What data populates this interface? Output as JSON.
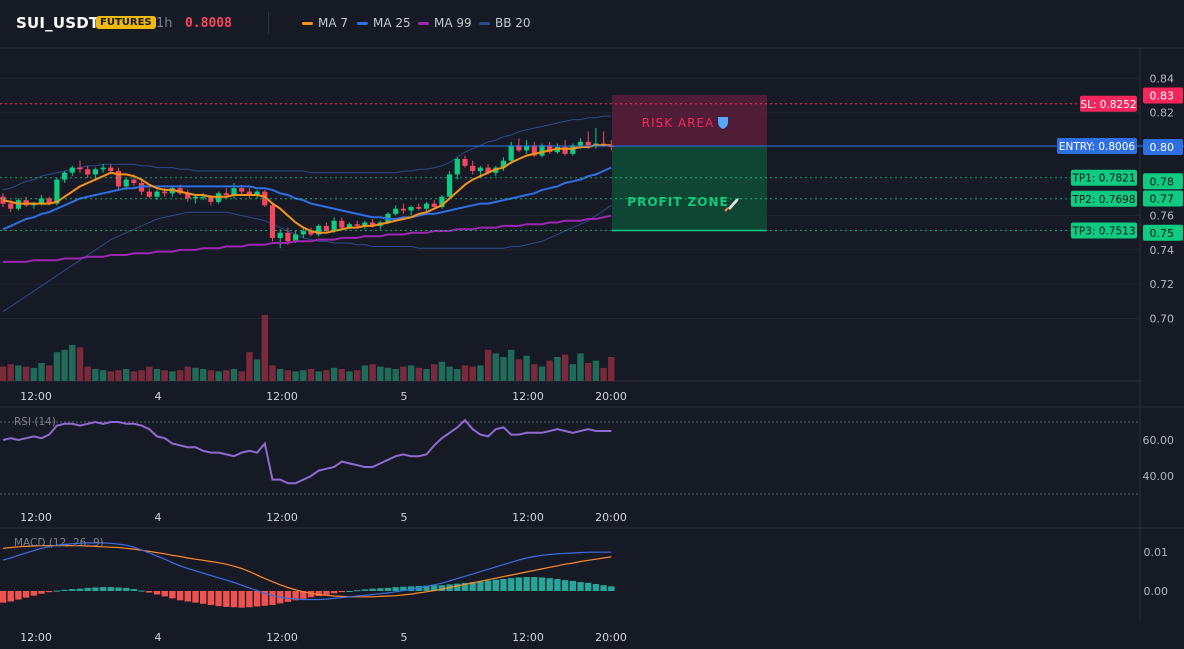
{
  "header": {
    "symbol": "SUI_USDT",
    "badge": "FUTURES",
    "timeframe": "1h",
    "last_price": "0.8008",
    "indicators": [
      {
        "label": "MA 7",
        "color": "#f7931a"
      },
      {
        "label": "MA 25",
        "color": "#2f6fe4"
      },
      {
        "label": "MA 99",
        "color": "#9c27b0"
      },
      {
        "label": "BB 20",
        "color": "#2b4a8a"
      }
    ]
  },
  "colors": {
    "up": "#0ecb81",
    "down": "#f6465d",
    "ma7": "#f7931a",
    "ma25": "#2f6fe4",
    "ma99": "#9c27b0",
    "bb": "#2b4a8a",
    "rsi": "#8e6ccf",
    "macd": "#3b6de0",
    "signal": "#ff8a2a",
    "hist_up": "#26a69a",
    "hist_down": "#ef5350",
    "sl": "#f6265d",
    "entry": "#2f6fe4",
    "tp": "#0ecb81"
  },
  "price_axis": {
    "labels": [
      "0.84",
      "0.83",
      "0.82",
      "0.80",
      "0.78",
      "0.77",
      "0.76",
      "0.75",
      "0.74",
      "0.72",
      "0.70"
    ]
  },
  "time_axis": {
    "labels": [
      "12:00",
      "4",
      "12:00",
      "5",
      "12:00",
      "20:00"
    ]
  },
  "trade": {
    "sl_label": "SL: 0.8252",
    "sl": 0.8252,
    "entry_label": "ENTRY: 0.8006",
    "entry": 0.8006,
    "tps": [
      {
        "label": "TP1: 0.7821",
        "value": 0.7821
      },
      {
        "label": "TP2: 0.7698",
        "value": 0.7698
      },
      {
        "label": "TP3: 0.7513",
        "value": 0.7513
      }
    ],
    "risk_label": "RISK AREA",
    "profit_label": "PROFIT ZONE"
  },
  "rsi": {
    "label": "RSI (14)",
    "axis_labels": [
      "60.00",
      "40.00"
    ],
    "upper": 70,
    "lower": 30
  },
  "macd": {
    "label": "MACD (12, 26, 9)",
    "axis_labels": [
      "0.01",
      "0.00"
    ]
  },
  "chart_data": {
    "type": "candlestick",
    "candles": [
      [
        0.771,
        0.773,
        0.765,
        0.767
      ],
      [
        0.767,
        0.769,
        0.762,
        0.764
      ],
      [
        0.764,
        0.77,
        0.763,
        0.769
      ],
      [
        0.769,
        0.771,
        0.765,
        0.766
      ],
      [
        0.766,
        0.768,
        0.764,
        0.767
      ],
      [
        0.767,
        0.772,
        0.766,
        0.77
      ],
      [
        0.77,
        0.771,
        0.766,
        0.767
      ],
      [
        0.767,
        0.782,
        0.766,
        0.781
      ],
      [
        0.781,
        0.786,
        0.779,
        0.785
      ],
      [
        0.785,
        0.789,
        0.783,
        0.788
      ],
      [
        0.788,
        0.792,
        0.785,
        0.787
      ],
      [
        0.787,
        0.789,
        0.782,
        0.784
      ],
      [
        0.784,
        0.788,
        0.781,
        0.787
      ],
      [
        0.787,
        0.79,
        0.785,
        0.788
      ],
      [
        0.788,
        0.79,
        0.784,
        0.786
      ],
      [
        0.786,
        0.788,
        0.775,
        0.777
      ],
      [
        0.777,
        0.782,
        0.775,
        0.781
      ],
      [
        0.781,
        0.784,
        0.777,
        0.779
      ],
      [
        0.779,
        0.781,
        0.772,
        0.774
      ],
      [
        0.774,
        0.776,
        0.77,
        0.771
      ],
      [
        0.771,
        0.775,
        0.769,
        0.774
      ],
      [
        0.774,
        0.776,
        0.771,
        0.773
      ],
      [
        0.773,
        0.777,
        0.771,
        0.776
      ],
      [
        0.776,
        0.778,
        0.772,
        0.773
      ],
      [
        0.773,
        0.775,
        0.768,
        0.77
      ],
      [
        0.77,
        0.772,
        0.767,
        0.771
      ],
      [
        0.771,
        0.773,
        0.769,
        0.771
      ],
      [
        0.771,
        0.772,
        0.766,
        0.768
      ],
      [
        0.768,
        0.774,
        0.767,
        0.773
      ],
      [
        0.773,
        0.776,
        0.77,
        0.772
      ],
      [
        0.772,
        0.779,
        0.77,
        0.776
      ],
      [
        0.776,
        0.778,
        0.772,
        0.774
      ],
      [
        0.774,
        0.776,
        0.77,
        0.772
      ],
      [
        0.772,
        0.775,
        0.77,
        0.774
      ],
      [
        0.774,
        0.775,
        0.765,
        0.766
      ],
      [
        0.766,
        0.768,
        0.745,
        0.747
      ],
      [
        0.747,
        0.752,
        0.741,
        0.75
      ],
      [
        0.75,
        0.753,
        0.743,
        0.745
      ],
      [
        0.745,
        0.751,
        0.744,
        0.749
      ],
      [
        0.749,
        0.753,
        0.747,
        0.751
      ],
      [
        0.751,
        0.753,
        0.748,
        0.749
      ],
      [
        0.749,
        0.755,
        0.748,
        0.754
      ],
      [
        0.754,
        0.756,
        0.75,
        0.751
      ],
      [
        0.751,
        0.759,
        0.75,
        0.757
      ],
      [
        0.757,
        0.759,
        0.752,
        0.753
      ],
      [
        0.753,
        0.756,
        0.752,
        0.755
      ],
      [
        0.755,
        0.757,
        0.753,
        0.754
      ],
      [
        0.754,
        0.757,
        0.752,
        0.756
      ],
      [
        0.756,
        0.758,
        0.753,
        0.754
      ],
      [
        0.754,
        0.757,
        0.752,
        0.756
      ],
      [
        0.756,
        0.762,
        0.755,
        0.761
      ],
      [
        0.761,
        0.766,
        0.76,
        0.764
      ],
      [
        0.764,
        0.767,
        0.761,
        0.763
      ],
      [
        0.763,
        0.766,
        0.76,
        0.765
      ],
      [
        0.765,
        0.767,
        0.763,
        0.764
      ],
      [
        0.764,
        0.768,
        0.762,
        0.767
      ],
      [
        0.767,
        0.769,
        0.764,
        0.765
      ],
      [
        0.765,
        0.772,
        0.764,
        0.771
      ],
      [
        0.771,
        0.786,
        0.77,
        0.784
      ],
      [
        0.784,
        0.794,
        0.781,
        0.793
      ],
      [
        0.793,
        0.795,
        0.788,
        0.789
      ],
      [
        0.789,
        0.792,
        0.784,
        0.786
      ],
      [
        0.786,
        0.789,
        0.782,
        0.788
      ],
      [
        0.788,
        0.79,
        0.784,
        0.785
      ],
      [
        0.785,
        0.789,
        0.783,
        0.788
      ],
      [
        0.788,
        0.794,
        0.786,
        0.792
      ],
      [
        0.792,
        0.803,
        0.79,
        0.801
      ],
      [
        0.801,
        0.805,
        0.797,
        0.798
      ],
      [
        0.798,
        0.804,
        0.796,
        0.801
      ],
      [
        0.801,
        0.803,
        0.794,
        0.795
      ],
      [
        0.795,
        0.802,
        0.794,
        0.801
      ],
      [
        0.801,
        0.803,
        0.796,
        0.797
      ],
      [
        0.797,
        0.802,
        0.796,
        0.8
      ],
      [
        0.8,
        0.804,
        0.795,
        0.796
      ],
      [
        0.796,
        0.802,
        0.795,
        0.801
      ],
      [
        0.801,
        0.805,
        0.799,
        0.803
      ],
      [
        0.803,
        0.809,
        0.799,
        0.801
      ],
      [
        0.801,
        0.811,
        0.799,
        0.802
      ],
      [
        0.802,
        0.809,
        0.8,
        0.801
      ],
      [
        0.801,
        0.804,
        0.798,
        0.8
      ]
    ],
    "ma7": [
      0.769,
      0.768,
      0.767,
      0.767,
      0.767,
      0.767,
      0.767,
      0.768,
      0.771,
      0.774,
      0.777,
      0.779,
      0.781,
      0.783,
      0.785,
      0.784,
      0.784,
      0.783,
      0.781,
      0.778,
      0.776,
      0.775,
      0.775,
      0.774,
      0.773,
      0.772,
      0.772,
      0.771,
      0.771,
      0.771,
      0.772,
      0.772,
      0.772,
      0.772,
      0.771,
      0.767,
      0.764,
      0.76,
      0.756,
      0.753,
      0.751,
      0.75,
      0.75,
      0.751,
      0.752,
      0.753,
      0.753,
      0.754,
      0.754,
      0.755,
      0.756,
      0.757,
      0.758,
      0.759,
      0.761,
      0.762,
      0.764,
      0.766,
      0.77,
      0.774,
      0.778,
      0.781,
      0.783,
      0.785,
      0.787,
      0.788,
      0.791,
      0.793,
      0.795,
      0.796,
      0.797,
      0.798,
      0.799,
      0.799,
      0.799,
      0.8,
      0.8,
      0.801,
      0.801,
      0.801
    ],
    "ma25": [
      0.752,
      0.754,
      0.756,
      0.758,
      0.759,
      0.761,
      0.762,
      0.764,
      0.766,
      0.768,
      0.77,
      0.771,
      0.772,
      0.773,
      0.774,
      0.775,
      0.776,
      0.776,
      0.777,
      0.777,
      0.777,
      0.777,
      0.777,
      0.777,
      0.777,
      0.777,
      0.777,
      0.777,
      0.777,
      0.777,
      0.777,
      0.777,
      0.777,
      0.776,
      0.776,
      0.775,
      0.773,
      0.772,
      0.77,
      0.769,
      0.767,
      0.766,
      0.765,
      0.764,
      0.763,
      0.762,
      0.761,
      0.76,
      0.759,
      0.759,
      0.758,
      0.758,
      0.759,
      0.759,
      0.76,
      0.761,
      0.761,
      0.762,
      0.763,
      0.764,
      0.765,
      0.766,
      0.767,
      0.767,
      0.768,
      0.769,
      0.77,
      0.771,
      0.772,
      0.773,
      0.775,
      0.776,
      0.777,
      0.779,
      0.78,
      0.781,
      0.783,
      0.784,
      0.786,
      0.788
    ],
    "ma99": [
      0.733,
      0.733,
      0.733,
      0.733,
      0.734,
      0.734,
      0.734,
      0.734,
      0.735,
      0.735,
      0.735,
      0.736,
      0.736,
      0.736,
      0.737,
      0.737,
      0.737,
      0.738,
      0.738,
      0.738,
      0.739,
      0.739,
      0.739,
      0.74,
      0.74,
      0.74,
      0.741,
      0.741,
      0.741,
      0.742,
      0.742,
      0.742,
      0.743,
      0.743,
      0.743,
      0.744,
      0.744,
      0.744,
      0.745,
      0.745,
      0.745,
      0.746,
      0.746,
      0.746,
      0.747,
      0.747,
      0.747,
      0.748,
      0.748,
      0.748,
      0.749,
      0.749,
      0.749,
      0.75,
      0.75,
      0.75,
      0.751,
      0.751,
      0.751,
      0.752,
      0.752,
      0.752,
      0.753,
      0.753,
      0.753,
      0.754,
      0.754,
      0.754,
      0.755,
      0.755,
      0.755,
      0.756,
      0.756,
      0.757,
      0.757,
      0.757,
      0.758,
      0.758,
      0.759,
      0.76
    ],
    "bb_upper": [
      0.775,
      0.776,
      0.778,
      0.78,
      0.781,
      0.783,
      0.784,
      0.785,
      0.786,
      0.787,
      0.788,
      0.789,
      0.789,
      0.79,
      0.79,
      0.79,
      0.79,
      0.79,
      0.789,
      0.789,
      0.788,
      0.788,
      0.788,
      0.787,
      0.787,
      0.786,
      0.786,
      0.786,
      0.786,
      0.786,
      0.786,
      0.786,
      0.786,
      0.786,
      0.786,
      0.786,
      0.786,
      0.786,
      0.786,
      0.786,
      0.785,
      0.785,
      0.785,
      0.785,
      0.785,
      0.785,
      0.785,
      0.785,
      0.785,
      0.785,
      0.785,
      0.785,
      0.786,
      0.786,
      0.787,
      0.787,
      0.788,
      0.789,
      0.791,
      0.794,
      0.797,
      0.799,
      0.801,
      0.803,
      0.804,
      0.806,
      0.807,
      0.809,
      0.81,
      0.811,
      0.812,
      0.813,
      0.814,
      0.815,
      0.816,
      0.816,
      0.817,
      0.817,
      0.818,
      0.818
    ],
    "bb_lower": [
      0.704,
      0.707,
      0.71,
      0.713,
      0.716,
      0.719,
      0.722,
      0.725,
      0.728,
      0.731,
      0.734,
      0.737,
      0.74,
      0.743,
      0.746,
      0.748,
      0.75,
      0.752,
      0.754,
      0.756,
      0.758,
      0.759,
      0.76,
      0.761,
      0.762,
      0.762,
      0.762,
      0.762,
      0.762,
      0.762,
      0.761,
      0.76,
      0.759,
      0.758,
      0.757,
      0.755,
      0.753,
      0.751,
      0.749,
      0.747,
      0.746,
      0.745,
      0.745,
      0.744,
      0.744,
      0.744,
      0.743,
      0.743,
      0.742,
      0.742,
      0.742,
      0.742,
      0.742,
      0.742,
      0.741,
      0.741,
      0.741,
      0.741,
      0.741,
      0.741,
      0.741,
      0.741,
      0.741,
      0.741,
      0.741,
      0.741,
      0.742,
      0.742,
      0.743,
      0.744,
      0.745,
      0.747,
      0.749,
      0.751,
      0.753,
      0.755,
      0.757,
      0.76,
      0.763,
      0.766
    ],
    "volume": [
      12,
      14,
      13,
      12,
      11,
      15,
      13,
      24,
      26,
      30,
      28,
      12,
      10,
      9,
      8,
      9,
      10,
      8,
      9,
      12,
      10,
      9,
      8,
      9,
      12,
      11,
      10,
      9,
      8,
      9,
      10,
      8,
      24,
      18,
      55,
      13,
      10,
      9,
      8,
      9,
      10,
      8,
      9,
      11,
      10,
      8,
      9,
      13,
      14,
      12,
      11,
      10,
      12,
      13,
      11,
      10,
      14,
      16,
      12,
      10,
      13,
      12,
      13,
      26,
      23,
      20,
      26,
      18,
      21,
      14,
      12,
      17,
      20,
      22,
      14,
      23,
      15,
      17,
      11,
      20
    ],
    "rsi": [
      60,
      61,
      60,
      61,
      62,
      61,
      63,
      68,
      69,
      69,
      68,
      69,
      70,
      69,
      70,
      70,
      69,
      69,
      68,
      66,
      62,
      61,
      58,
      57,
      56,
      56,
      54,
      53,
      53,
      52,
      51,
      53,
      54,
      53,
      58,
      38,
      38,
      36,
      36,
      38,
      40,
      43,
      44,
      45,
      48,
      47,
      46,
      45,
      45,
      47,
      49,
      51,
      52,
      51,
      51,
      52,
      57,
      61,
      64,
      67,
      71,
      66,
      63,
      62,
      66,
      67,
      63,
      63,
      64,
      64,
      64,
      65,
      66,
      65,
      64,
      65,
      66,
      65,
      65,
      65
    ],
    "macd": [
      0.008,
      0.0085,
      0.0092,
      0.0098,
      0.0104,
      0.011,
      0.0114,
      0.0118,
      0.012,
      0.0122,
      0.0123,
      0.0124,
      0.0124,
      0.0124,
      0.0123,
      0.0121,
      0.0118,
      0.0113,
      0.0106,
      0.0098,
      0.009,
      0.0082,
      0.0073,
      0.0065,
      0.0058,
      0.0052,
      0.0046,
      0.004,
      0.0034,
      0.0028,
      0.0022,
      0.0015,
      0.0008,
      0.0001,
      -0.0006,
      -0.0012,
      -0.0016,
      -0.0019,
      -0.0021,
      -0.0022,
      -0.0022,
      -0.0022,
      -0.0021,
      -0.0019,
      -0.0017,
      -0.0015,
      -0.0013,
      -0.0011,
      -0.0009,
      -0.0007,
      -0.0005,
      -0.0002,
      0.0001,
      0.0004,
      0.0008,
      0.0012,
      0.0016,
      0.002,
      0.0026,
      0.0032,
      0.0038,
      0.0044,
      0.005,
      0.0056,
      0.0062,
      0.0068,
      0.0074,
      0.008,
      0.0085,
      0.0089,
      0.0092,
      0.0094,
      0.0096,
      0.0097,
      0.0098,
      0.0099,
      0.01,
      0.01,
      0.01,
      0.01
    ],
    "signal": [
      0.011,
      0.0112,
      0.0114,
      0.0115,
      0.0116,
      0.0117,
      0.0117,
      0.0117,
      0.0117,
      0.0117,
      0.0117,
      0.0116,
      0.0115,
      0.0114,
      0.0113,
      0.0112,
      0.011,
      0.0108,
      0.0105,
      0.0102,
      0.0099,
      0.0096,
      0.0092,
      0.0089,
      0.0085,
      0.0082,
      0.0079,
      0.0076,
      0.0073,
      0.0069,
      0.0064,
      0.0058,
      0.005,
      0.0041,
      0.0032,
      0.0024,
      0.0016,
      0.0009,
      0.0003,
      -0.0002,
      -0.0006,
      -0.0009,
      -0.0011,
      -0.0013,
      -0.0014,
      -0.0015,
      -0.0015,
      -0.0015,
      -0.0015,
      -0.0014,
      -0.0013,
      -0.0012,
      -0.001,
      -0.0008,
      -0.0005,
      -0.0002,
      0.0001,
      0.0005,
      0.0009,
      0.0013,
      0.0017,
      0.0021,
      0.0025,
      0.0029,
      0.0033,
      0.0037,
      0.0041,
      0.0045,
      0.0049,
      0.0053,
      0.0057,
      0.0061,
      0.0065,
      0.0069,
      0.0072,
      0.0076,
      0.0079,
      0.0082,
      0.0085,
      0.0088
    ]
  }
}
